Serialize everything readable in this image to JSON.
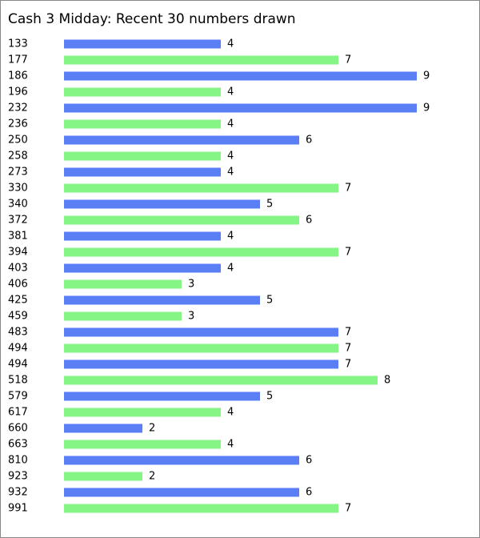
{
  "chart_data": {
    "type": "barh",
    "title": "Cash 3 Midday: Recent 30 numbers drawn",
    "categories": [
      "133",
      "177",
      "186",
      "196",
      "232",
      "236",
      "250",
      "258",
      "273",
      "330",
      "340",
      "372",
      "381",
      "394",
      "403",
      "406",
      "425",
      "459",
      "483",
      "494",
      "494",
      "518",
      "579",
      "617",
      "660",
      "663",
      "810",
      "923",
      "932",
      "991"
    ],
    "values": [
      4,
      7,
      9,
      4,
      9,
      4,
      6,
      4,
      4,
      7,
      5,
      6,
      4,
      7,
      4,
      3,
      5,
      3,
      7,
      7,
      7,
      8,
      5,
      4,
      2,
      4,
      6,
      2,
      6,
      7
    ],
    "colors": [
      "#5a7ff5",
      "#85f585"
    ]
  }
}
